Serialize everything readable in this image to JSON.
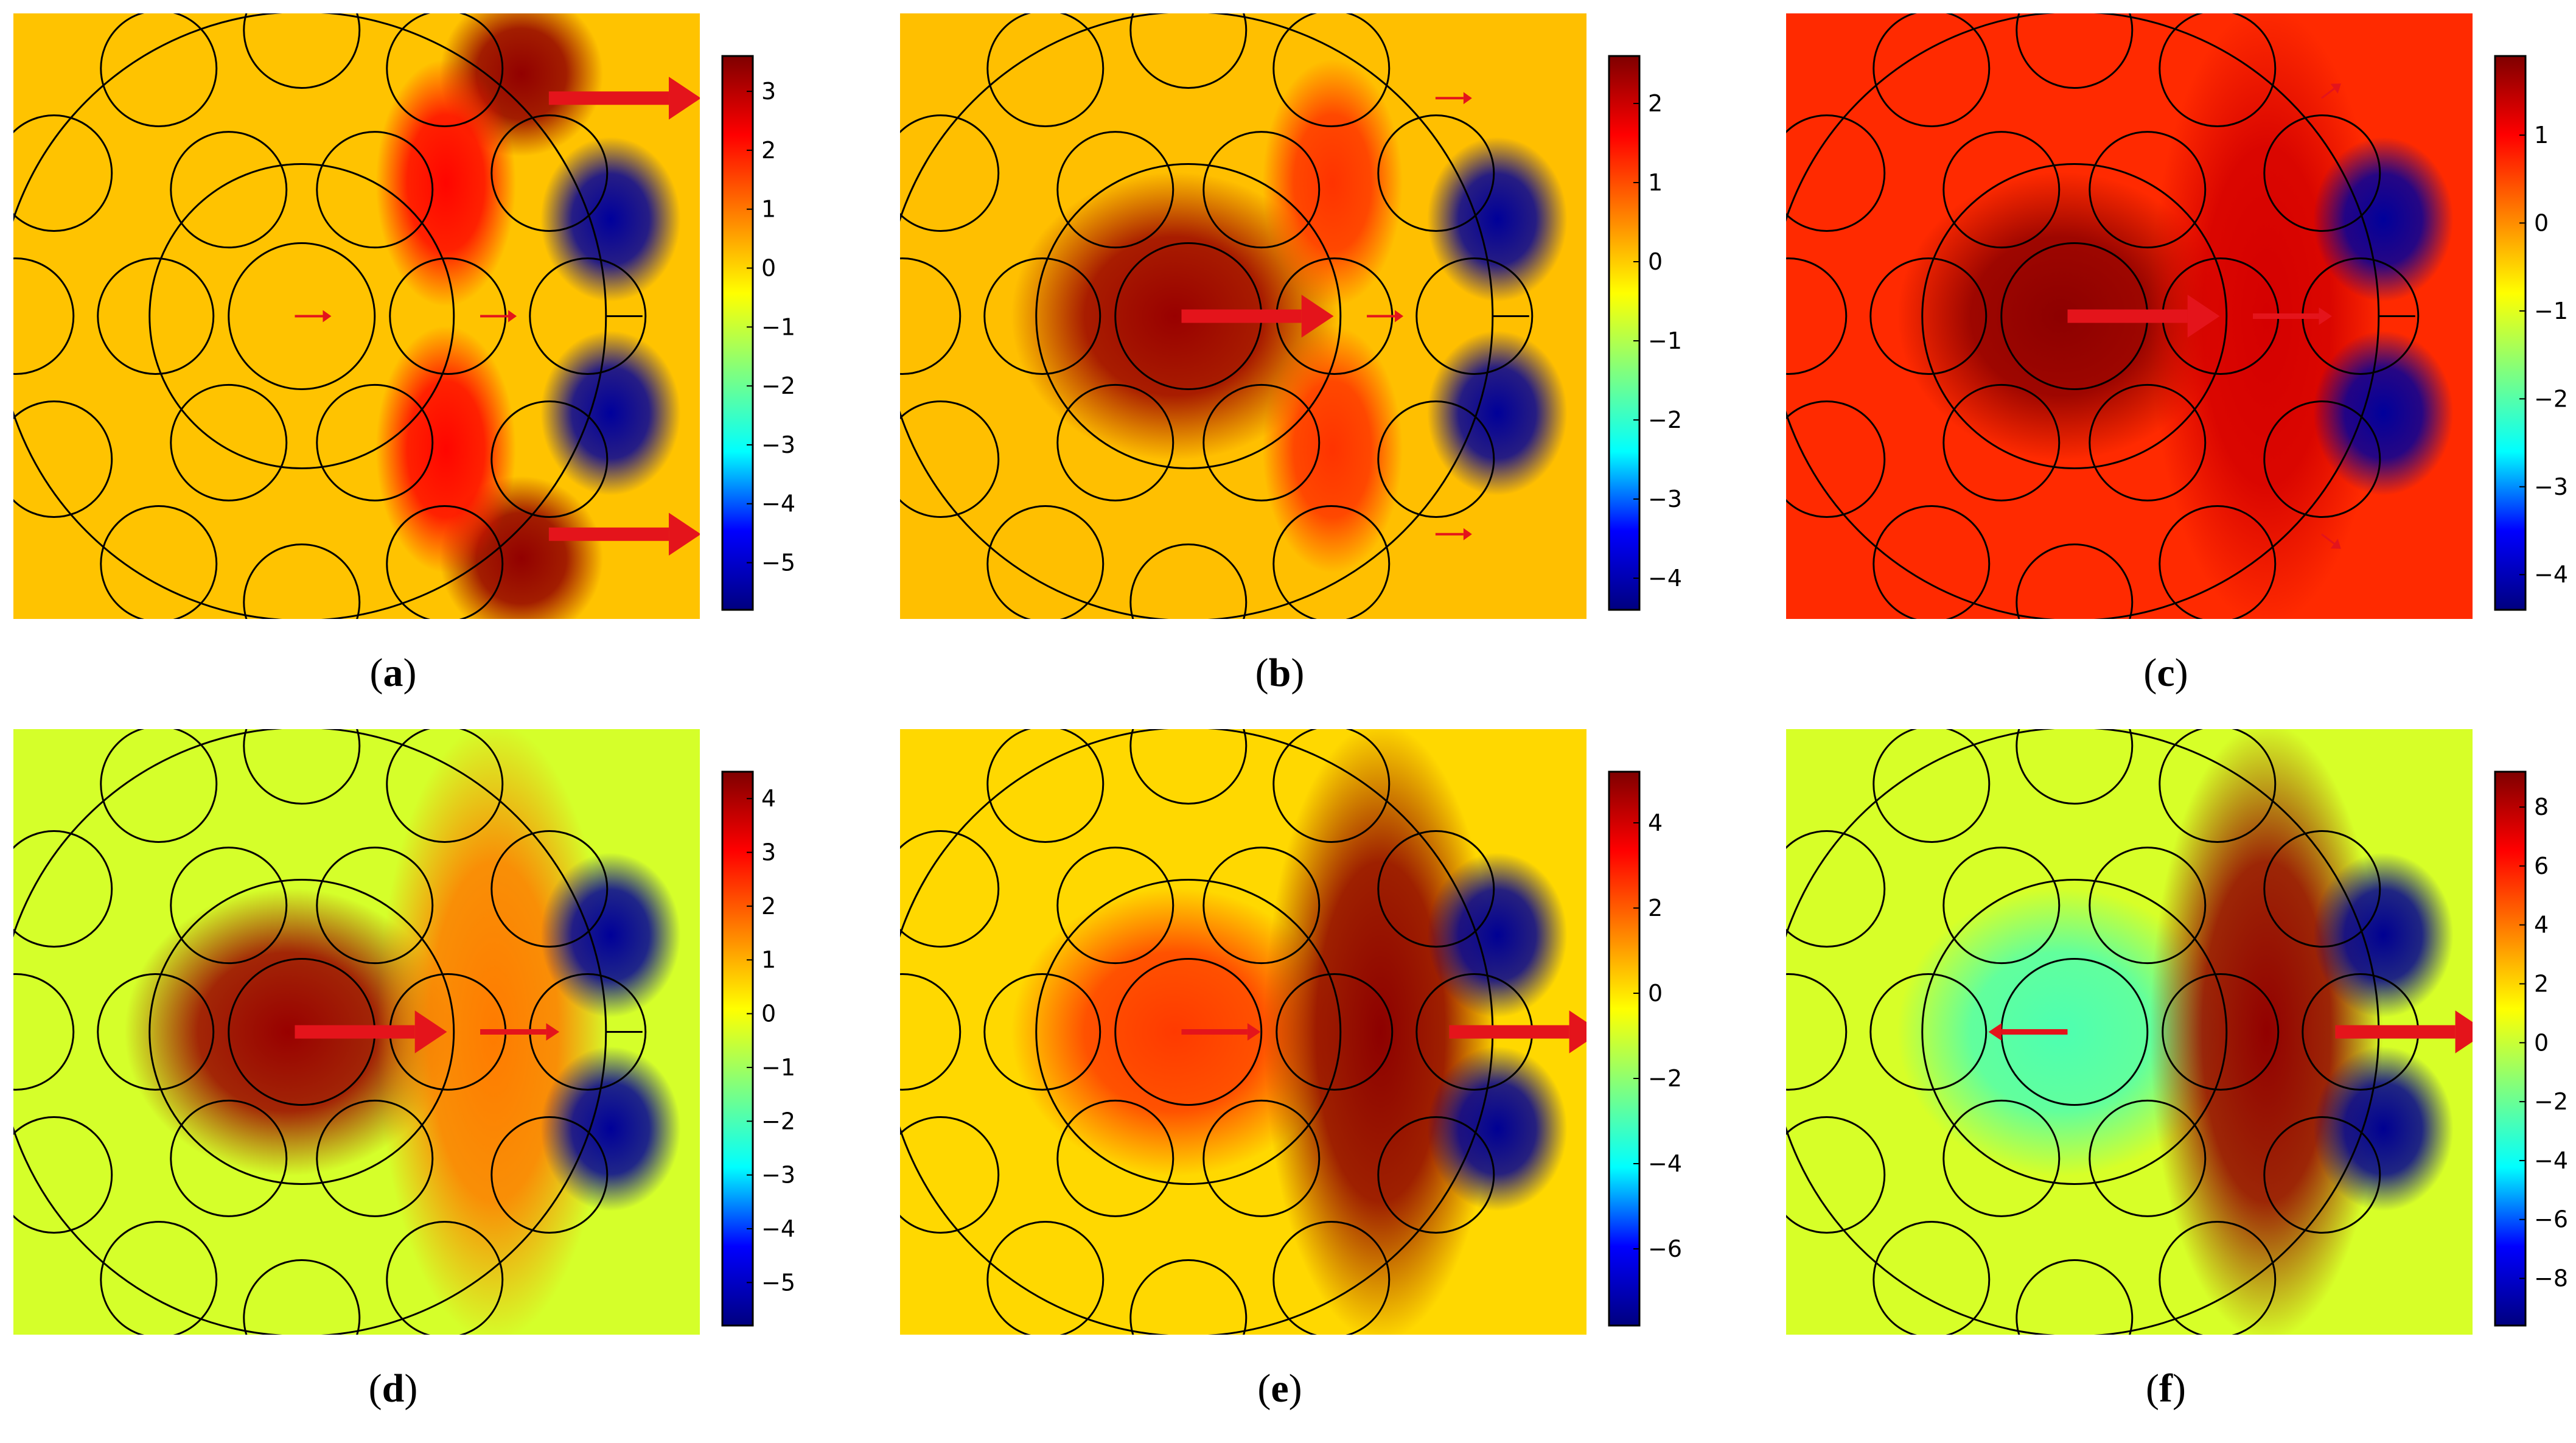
{
  "colors": {
    "colormap": [
      "#00007f",
      "#0000ff",
      "#00ffff",
      "#7fff7f",
      "#ffff00",
      "#ff7f00",
      "#ff0000",
      "#7f0000"
    ],
    "arrow": "#e4141b",
    "outline": "#000000"
  },
  "chart_data": [
    {
      "type": "heatmap",
      "label": "a",
      "title": "",
      "xlabel": "",
      "ylabel": "",
      "colorbar": {
        "range": [
          -5.8,
          3.6
        ],
        "ticks": [
          3,
          2,
          1,
          0,
          -1,
          -2,
          -3,
          -4,
          -5
        ]
      },
      "background_value": 0.2,
      "features": [
        {
          "kind": "positive lobe",
          "where": "upper-right",
          "value": 3.4
        },
        {
          "kind": "positive lobe",
          "where": "lower-right",
          "value": 3.4
        },
        {
          "kind": "positive band",
          "where": "upper-middle",
          "value": 2.2
        },
        {
          "kind": "positive band",
          "where": "lower-middle",
          "value": 2.2
        },
        {
          "kind": "negative lobe",
          "where": "right-upper",
          "value": -5.5
        },
        {
          "kind": "negative lobe",
          "where": "right-lower",
          "value": -5.5
        }
      ],
      "arrows": [
        {
          "direction": "east",
          "magnitude": "small",
          "where": "center"
        },
        {
          "direction": "east",
          "magnitude": "small",
          "where": "inner ring"
        },
        {
          "direction": "east",
          "magnitude": "large",
          "where": "upper edge"
        },
        {
          "direction": "east",
          "magnitude": "large",
          "where": "lower edge"
        }
      ]
    },
    {
      "type": "heatmap",
      "label": "b",
      "title": "",
      "xlabel": "",
      "ylabel": "",
      "colorbar": {
        "range": [
          -4.4,
          2.6
        ],
        "ticks": [
          2,
          1,
          0,
          -1,
          -2,
          -3,
          -4
        ]
      },
      "background_value": 0.1,
      "features": [
        {
          "kind": "positive core",
          "where": "center",
          "value": 2.4
        },
        {
          "kind": "positive band",
          "where": "upper-middle",
          "value": 1.2
        },
        {
          "kind": "positive band",
          "where": "lower-middle",
          "value": 1.2
        },
        {
          "kind": "negative lobe",
          "where": "right-upper",
          "value": -4.2
        },
        {
          "kind": "negative lobe",
          "where": "right-lower",
          "value": -4.2
        }
      ],
      "arrows": [
        {
          "direction": "east",
          "magnitude": "large",
          "where": "center"
        },
        {
          "direction": "east",
          "magnitude": "small",
          "where": "inner ring"
        },
        {
          "direction": "east",
          "magnitude": "small",
          "where": "upper edge"
        },
        {
          "direction": "east",
          "magnitude": "small",
          "where": "lower edge"
        }
      ]
    },
    {
      "type": "heatmap",
      "label": "c",
      "title": "",
      "xlabel": "",
      "ylabel": "",
      "colorbar": {
        "range": [
          -4.4,
          1.9
        ],
        "ticks": [
          1,
          0,
          -1,
          -2,
          -3,
          -4
        ]
      },
      "background_value": 0.7,
      "features": [
        {
          "kind": "positive core",
          "where": "center",
          "value": 1.8
        },
        {
          "kind": "positive band",
          "where": "ring",
          "value": 1.3
        },
        {
          "kind": "negative lobe",
          "where": "right-upper",
          "value": -4.2
        },
        {
          "kind": "negative lobe",
          "where": "right-lower",
          "value": -4.2
        }
      ],
      "arrows": [
        {
          "direction": "east",
          "magnitude": "large",
          "where": "center"
        },
        {
          "direction": "east",
          "magnitude": "medium",
          "where": "inner ring"
        },
        {
          "direction": "northeast",
          "magnitude": "tiny",
          "where": "upper edge"
        },
        {
          "direction": "southeast",
          "magnitude": "tiny",
          "where": "lower edge"
        }
      ]
    },
    {
      "type": "heatmap",
      "label": "d",
      "title": "",
      "xlabel": "",
      "ylabel": "",
      "colorbar": {
        "range": [
          -5.8,
          4.5
        ],
        "ticks": [
          4,
          3,
          2,
          1,
          0,
          -1,
          -2,
          -3,
          -4,
          -5
        ]
      },
      "background_value": -0.4,
      "features": [
        {
          "kind": "positive core",
          "where": "center",
          "value": 4.2
        },
        {
          "kind": "positive band",
          "where": "ring",
          "value": 1.6
        },
        {
          "kind": "negative lobe",
          "where": "right-upper",
          "value": -5.5
        },
        {
          "kind": "negative lobe",
          "where": "right-lower",
          "value": -5.5
        }
      ],
      "arrows": [
        {
          "direction": "east",
          "magnitude": "large",
          "where": "center"
        },
        {
          "direction": "east",
          "magnitude": "medium",
          "where": "inner ring"
        }
      ]
    },
    {
      "type": "heatmap",
      "label": "e",
      "title": "",
      "xlabel": "",
      "ylabel": "",
      "colorbar": {
        "range": [
          -7.8,
          5.2
        ],
        "ticks": [
          4,
          2,
          0,
          -2,
          -4,
          -6
        ]
      },
      "background_value": 0.2,
      "features": [
        {
          "kind": "positive core",
          "where": "center",
          "value": 2.5
        },
        {
          "kind": "positive band",
          "where": "ring",
          "value": 5.0
        },
        {
          "kind": "negative lobe",
          "where": "right-upper",
          "value": -7.5
        },
        {
          "kind": "negative lobe",
          "where": "right-lower",
          "value": -7.5
        }
      ],
      "arrows": [
        {
          "direction": "east",
          "magnitude": "medium",
          "where": "center"
        },
        {
          "direction": "east",
          "magnitude": "large",
          "where": "outer ring"
        }
      ]
    },
    {
      "type": "heatmap",
      "label": "f",
      "title": "",
      "xlabel": "",
      "ylabel": "",
      "colorbar": {
        "range": [
          -9.6,
          9.2
        ],
        "ticks": [
          8,
          6,
          4,
          2,
          0,
          -2,
          -4,
          -6,
          -8
        ]
      },
      "background_value": 0.3,
      "features": [
        {
          "kind": "negative core",
          "where": "center",
          "value": -2.6
        },
        {
          "kind": "positive band",
          "where": "ring",
          "value": 8.8
        },
        {
          "kind": "negative lobe",
          "where": "right-upper",
          "value": -9.2
        },
        {
          "kind": "negative lobe",
          "where": "right-lower",
          "value": -9.2
        }
      ],
      "arrows": [
        {
          "direction": "west",
          "magnitude": "medium",
          "where": "center"
        },
        {
          "direction": "east",
          "magnitude": "large",
          "where": "outer ring"
        }
      ]
    }
  ]
}
